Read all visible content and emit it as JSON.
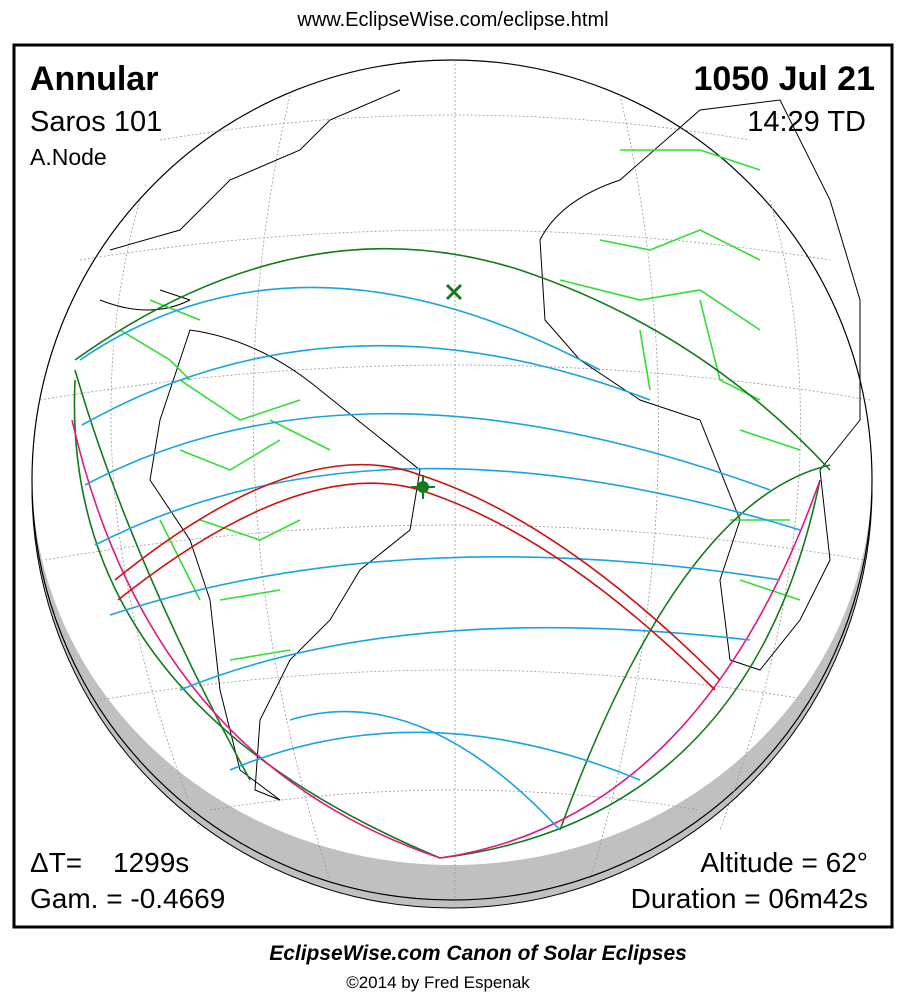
{
  "header": {
    "url": "www.EclipseWise.com/eclipse.html"
  },
  "panel": {
    "eclipse_type": "Annular",
    "saros": "Saros 101",
    "node": "A.Node",
    "date": "1050 Jul 21",
    "time": "14:29 TD",
    "delta_t_label": "ΔT=",
    "delta_t_value": "1299s",
    "gamma": "Gam. = -0.4669",
    "altitude": "Altitude = 62°",
    "duration": "Duration = 06m42s"
  },
  "footer": {
    "title": "EclipseWise.com Canon of Solar Eclipses",
    "copyright": "©2014 by Fred Espenak"
  }
}
